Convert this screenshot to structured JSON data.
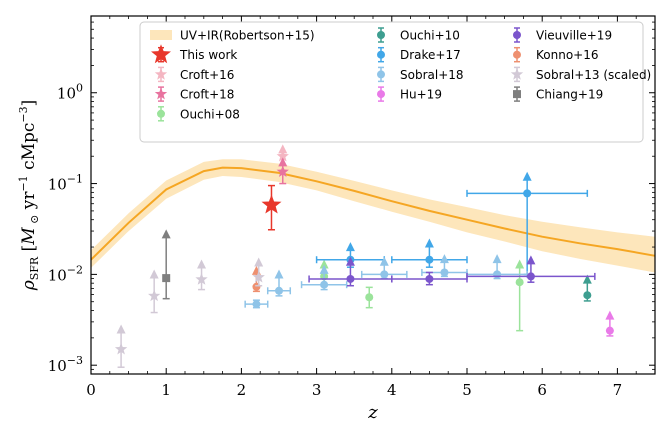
{
  "chart_data": {
    "type": "scatter",
    "xlabel": "z",
    "ylabel": "ρSFR [M⊙ yr⁻¹ cMpc⁻³]",
    "ylabel_parts": {
      "rho": "ρ",
      "sub": "SFR",
      "open": " [",
      "m": "M",
      "odot": " ⊙",
      "yr": " yr",
      "ym1": "−1",
      "cmpc": " cMpc",
      "cm3": "−3",
      "close": "]"
    },
    "xlim": [
      0,
      7.5
    ],
    "ylim": [
      0.0008,
      7
    ],
    "yscale": "log",
    "xticks": [
      0,
      1,
      2,
      3,
      4,
      5,
      6,
      7
    ],
    "yticks": [
      {
        "value": 0.001,
        "base": "10",
        "exp": "−3"
      },
      {
        "value": 0.01,
        "base": "10",
        "exp": "−2"
      },
      {
        "value": 0.1,
        "base": "10",
        "exp": "−1"
      },
      {
        "value": 1,
        "base": "10",
        "exp": "0"
      }
    ],
    "legend_position": "top",
    "band": {
      "name": "UV+IR(Robertson+15)",
      "color": "#f5a623",
      "band_color": "#fde6bb",
      "x": [
        0,
        0.5,
        1.0,
        1.5,
        1.75,
        2.0,
        2.5,
        3.0,
        3.5,
        4.0,
        4.5,
        5.0,
        5.5,
        6.0,
        6.5,
        7.0,
        7.5
      ],
      "y": [
        0.0145,
        0.037,
        0.086,
        0.137,
        0.15,
        0.148,
        0.131,
        0.106,
        0.083,
        0.064,
        0.05,
        0.04,
        0.032,
        0.026,
        0.022,
        0.019,
        0.016
      ],
      "lower": [
        0.0118,
        0.03,
        0.068,
        0.11,
        0.121,
        0.118,
        0.104,
        0.084,
        0.064,
        0.049,
        0.038,
        0.029,
        0.023,
        0.018,
        0.0148,
        0.0125,
        0.0105
      ],
      "upper": [
        0.0185,
        0.047,
        0.108,
        0.173,
        0.185,
        0.185,
        0.166,
        0.135,
        0.107,
        0.084,
        0.067,
        0.055,
        0.045,
        0.038,
        0.033,
        0.029,
        0.026
      ]
    },
    "series": [
      {
        "name": "This work",
        "color": "#e8372b",
        "marker": "star",
        "points": [
          {
            "x": 2.4,
            "y": 0.058,
            "lo": 0.031,
            "hi": 0.095,
            "up": false
          }
        ]
      },
      {
        "name": "Croft+16",
        "color": "#f4b6c2",
        "marker": "star",
        "points": [
          {
            "x": 2.55,
            "y": 0.2,
            "lo": 0.16,
            "hi": 0.25,
            "up": true
          }
        ]
      },
      {
        "name": "Croft+18",
        "color": "#e8739f",
        "marker": "star",
        "points": [
          {
            "x": 2.55,
            "y": 0.135,
            "lo": 0.1,
            "hi": 0.18,
            "up": true
          }
        ]
      },
      {
        "name": "Ouchi+08",
        "color": "#9be39b",
        "marker": "circle",
        "points": [
          {
            "x": 3.1,
            "y": 0.0095,
            "lo": 0.0075,
            "hi": 0.0135,
            "up": true
          },
          {
            "x": 3.7,
            "y": 0.0056,
            "lo": 0.0043,
            "hi": 0.0072,
            "up": false
          },
          {
            "x": 5.7,
            "y": 0.0082,
            "lo": 0.0024,
            "hi": 0.0135,
            "up": true
          }
        ]
      },
      {
        "name": "Ouchi+10",
        "color": "#3e9e90",
        "marker": "circle",
        "points": [
          {
            "x": 6.6,
            "y": 0.0059,
            "lo": 0.0051,
            "hi": 0.0092,
            "up": true
          }
        ]
      },
      {
        "name": "Drake+17",
        "color": "#41a7e8",
        "marker": "circle",
        "points": [
          {
            "x": 3.45,
            "y": 0.0145,
            "lo": 0.012,
            "hi": 0.021,
            "up": true,
            "xlo": 3.0,
            "xhi": 3.9
          },
          {
            "x": 4.5,
            "y": 0.0145,
            "lo": 0.012,
            "hi": 0.023,
            "up": true,
            "xlo": 4.0,
            "xhi": 5.0
          },
          {
            "x": 5.8,
            "y": 0.078,
            "lo": 0.01,
            "hi": 0.125,
            "up": true,
            "xlo": 5.0,
            "xhi": 6.6
          }
        ]
      },
      {
        "name": "Sobral+18",
        "color": "#8fc4e8",
        "marker": "circle",
        "points": [
          {
            "x": 2.2,
            "y": 0.0047,
            "lo": 0.0043,
            "hi": 0.0052,
            "up": false,
            "xlo": 2.05,
            "xhi": 2.35
          },
          {
            "x": 2.5,
            "y": 0.0066,
            "lo": 0.0058,
            "hi": 0.0105,
            "up": true,
            "xlo": 2.35,
            "xhi": 2.65
          },
          {
            "x": 3.1,
            "y": 0.0077,
            "lo": 0.0068,
            "hi": 0.0118,
            "up": true,
            "xlo": 2.8,
            "xhi": 3.4
          },
          {
            "x": 3.9,
            "y": 0.01,
            "lo": 0.009,
            "hi": 0.0145,
            "up": true,
            "xlo": 3.6,
            "xhi": 4.2
          },
          {
            "x": 4.7,
            "y": 0.0105,
            "lo": 0.0095,
            "hi": 0.0155,
            "up": true,
            "xlo": 4.4,
            "xhi": 5.0
          },
          {
            "x": 5.4,
            "y": 0.01,
            "lo": 0.009,
            "hi": 0.0155,
            "up": true,
            "xlo": 5.0,
            "xhi": 5.8
          }
        ]
      },
      {
        "name": "Hu+19",
        "color": "#e97ae8",
        "marker": "circle",
        "points": [
          {
            "x": 6.9,
            "y": 0.0024,
            "lo": 0.0021,
            "hi": 0.0037,
            "up": true
          }
        ]
      },
      {
        "name": "Vieuville+19",
        "color": "#7b55cc",
        "marker": "circle",
        "points": [
          {
            "x": 3.45,
            "y": 0.0089,
            "lo": 0.0075,
            "hi": 0.0145,
            "up": true,
            "xlo": 2.9,
            "xhi": 4.0
          },
          {
            "x": 4.5,
            "y": 0.0089,
            "lo": 0.0077,
            "hi": 0.0105,
            "up": false,
            "xlo": 4.0,
            "xhi": 5.0
          },
          {
            "x": 5.85,
            "y": 0.0095,
            "lo": 0.0082,
            "hi": 0.015,
            "up": true,
            "xlo": 5.0,
            "xhi": 6.7
          }
        ]
      },
      {
        "name": "Konno+16",
        "color": "#ee9070",
        "marker": "circle",
        "points": [
          {
            "x": 2.2,
            "y": 0.0073,
            "lo": 0.0065,
            "hi": 0.0115,
            "up": true
          }
        ]
      },
      {
        "name": "Sobral+13 (scaled)",
        "color": "#d2c9d6",
        "marker": "star",
        "points": [
          {
            "x": 0.4,
            "y": 0.0015,
            "lo": 0.00095,
            "hi": 0.0026,
            "up": true
          },
          {
            "x": 0.84,
            "y": 0.0058,
            "lo": 0.0038,
            "hi": 0.0105,
            "up": true
          },
          {
            "x": 1.47,
            "y": 0.0088,
            "lo": 0.0068,
            "hi": 0.0135,
            "up": true
          },
          {
            "x": 2.23,
            "y": 0.0093,
            "lo": 0.0075,
            "hi": 0.0142,
            "up": true
          }
        ]
      },
      {
        "name": "Chiang+19",
        "color": "#7f7f7f",
        "marker": "square",
        "points": [
          {
            "x": 1.0,
            "y": 0.0091,
            "lo": 0.0054,
            "hi": 0.029,
            "up": true
          }
        ]
      }
    ],
    "legend_order": [
      "UV+IR(Robertson+15)",
      "This work",
      "Croft+16",
      "Croft+18",
      "Ouchi+08",
      "Ouchi+10",
      "Drake+17",
      "Sobral+18",
      "Hu+19",
      "Vieuville+19",
      "Konno+16",
      "Sobral+13 (scaled)",
      "Chiang+19"
    ]
  }
}
